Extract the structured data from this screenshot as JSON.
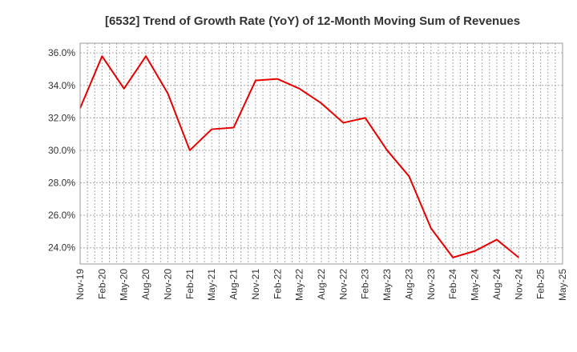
{
  "chart_data": {
    "type": "line",
    "title": "[6532]  Trend of Growth Rate (YoY) of 12-Month Moving Sum of Revenues",
    "xlabel": "",
    "ylabel": "",
    "ylim": [
      23.0,
      36.6
    ],
    "grid": true,
    "legend": "none",
    "y_ticks": [
      "24.0%",
      "26.0%",
      "28.0%",
      "30.0%",
      "32.0%",
      "34.0%",
      "36.0%"
    ],
    "y_tick_values": [
      24,
      26,
      28,
      30,
      32,
      34,
      36
    ],
    "x_ticks": [
      "Nov-19",
      "Feb-20",
      "May-20",
      "Aug-20",
      "Nov-20",
      "Feb-21",
      "May-21",
      "Aug-21",
      "Nov-21",
      "Feb-22",
      "May-22",
      "Aug-22",
      "Nov-22",
      "Feb-23",
      "May-23",
      "Aug-23",
      "Nov-23",
      "Feb-24",
      "May-24",
      "Aug-24",
      "Nov-24",
      "Feb-25",
      "May-25"
    ],
    "series": [
      {
        "color": "#e60000",
        "x": [
          "Nov-19",
          "Feb-20",
          "May-20",
          "Aug-20",
          "Nov-20",
          "Feb-21",
          "May-21",
          "Aug-21",
          "Nov-21",
          "Feb-22",
          "May-22",
          "Aug-22",
          "Nov-22",
          "Feb-23",
          "May-23",
          "Aug-23",
          "Nov-23",
          "Feb-24",
          "May-24",
          "Aug-24",
          "Nov-24"
        ],
        "values": [
          32.6,
          35.8,
          33.8,
          35.8,
          33.5,
          30.0,
          31.3,
          31.4,
          34.3,
          34.4,
          33.8,
          32.9,
          31.7,
          32.0,
          30.0,
          28.4,
          25.2,
          23.4,
          23.8,
          24.5,
          23.4
        ]
      }
    ]
  }
}
